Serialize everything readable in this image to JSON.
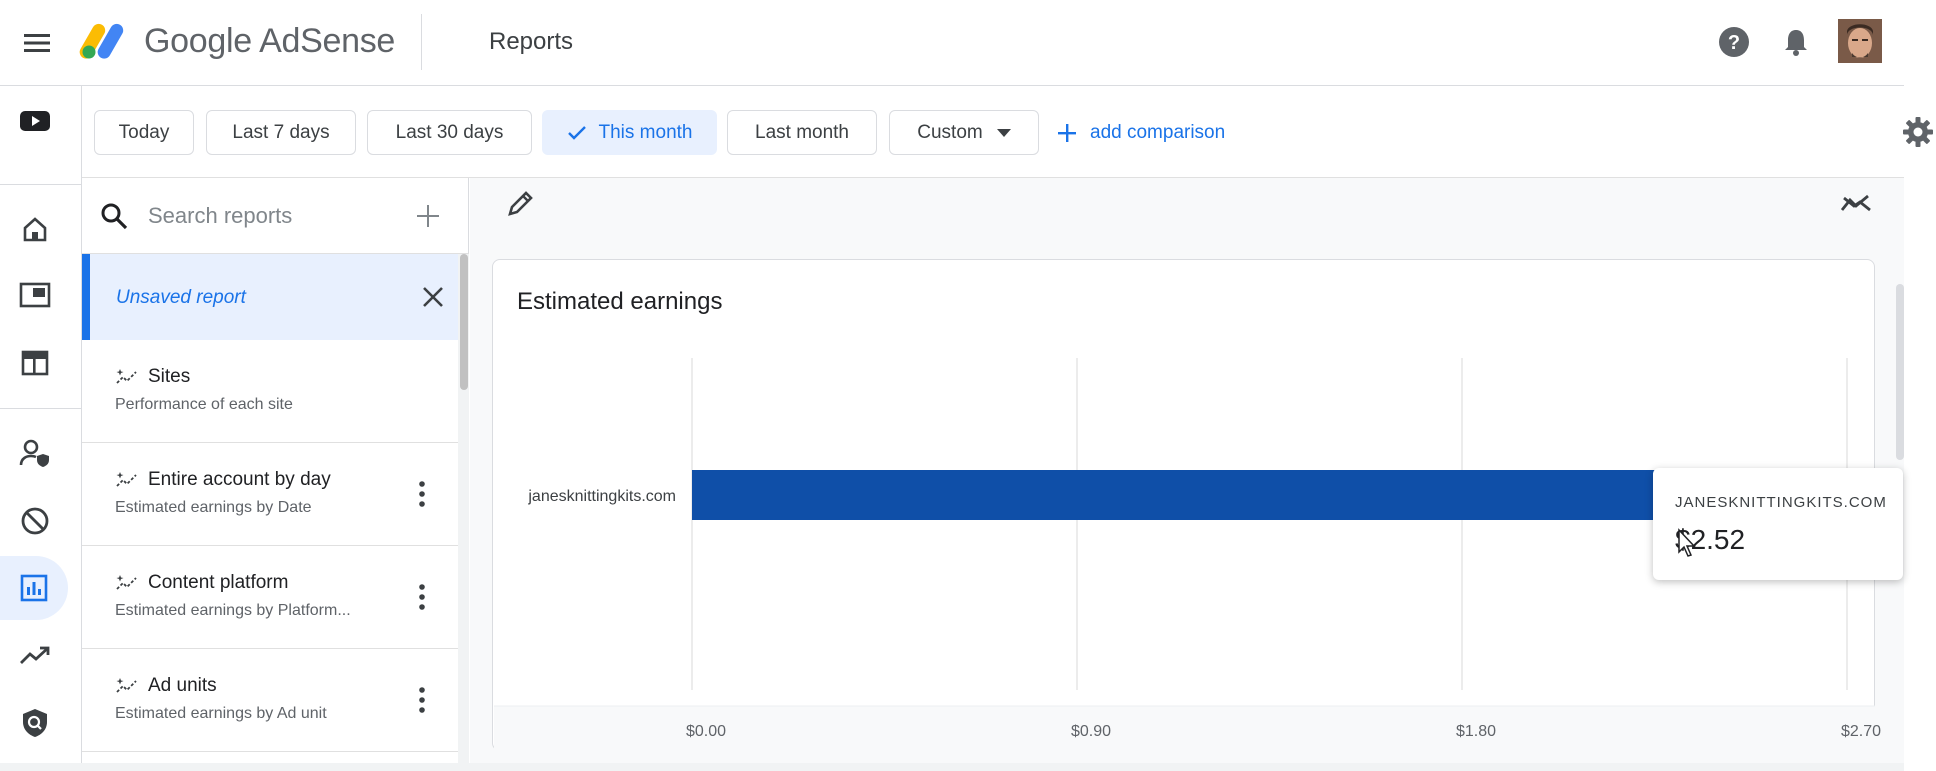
{
  "header": {
    "brand": "Google AdSense",
    "page_title": "Reports",
    "icons": [
      "menu-icon",
      "help-icon",
      "notifications-bell-icon",
      "avatar"
    ]
  },
  "rail": {
    "icons": [
      "youtube-icon",
      "home-icon",
      "ads-icon",
      "sites-layout-icon",
      "privacy-messaging-icon",
      "blocking-controls-icon",
      "reports-icon",
      "optimization-icon",
      "policy-center-icon"
    ],
    "active": "reports-icon"
  },
  "filters": {
    "chips": [
      {
        "label": "Today",
        "selected": false
      },
      {
        "label": "Last 7 days",
        "selected": false
      },
      {
        "label": "Last 30 days",
        "selected": false
      },
      {
        "label": "This month",
        "selected": true
      },
      {
        "label": "Last month",
        "selected": false
      },
      {
        "label": "Custom",
        "selected": false
      }
    ],
    "add_comparison": "add comparison"
  },
  "reports": {
    "search_placeholder": "Search reports",
    "unsaved_label": "Unsaved report",
    "items": [
      {
        "title": "Sites",
        "subtitle": "Performance of each site"
      },
      {
        "title": "Entire account by day",
        "subtitle": "Estimated earnings by Date"
      },
      {
        "title": "Content platform",
        "subtitle": "Estimated earnings by Platform..."
      },
      {
        "title": "Ad units",
        "subtitle": "Estimated earnings by Ad unit"
      }
    ]
  },
  "chart": {
    "title": "Estimated earnings",
    "tooltip": {
      "name": "JANESKNITTINGKITS.COM",
      "value": "$2.52"
    }
  },
  "colors": {
    "accent": "#1a73e8",
    "bar": "#0f4fa8",
    "selected_bg": "#e8f0fe"
  },
  "chart_data": {
    "type": "bar",
    "orientation": "horizontal",
    "title": "Estimated earnings",
    "categories": [
      "janesknittingkits.com"
    ],
    "values": [
      2.52
    ],
    "xlim": [
      0,
      2.7
    ],
    "xticks": [
      0,
      0.9,
      1.8,
      2.7
    ],
    "xtick_labels": [
      "$0.00",
      "$0.90",
      "$1.80",
      "$2.70"
    ],
    "grid": true
  }
}
